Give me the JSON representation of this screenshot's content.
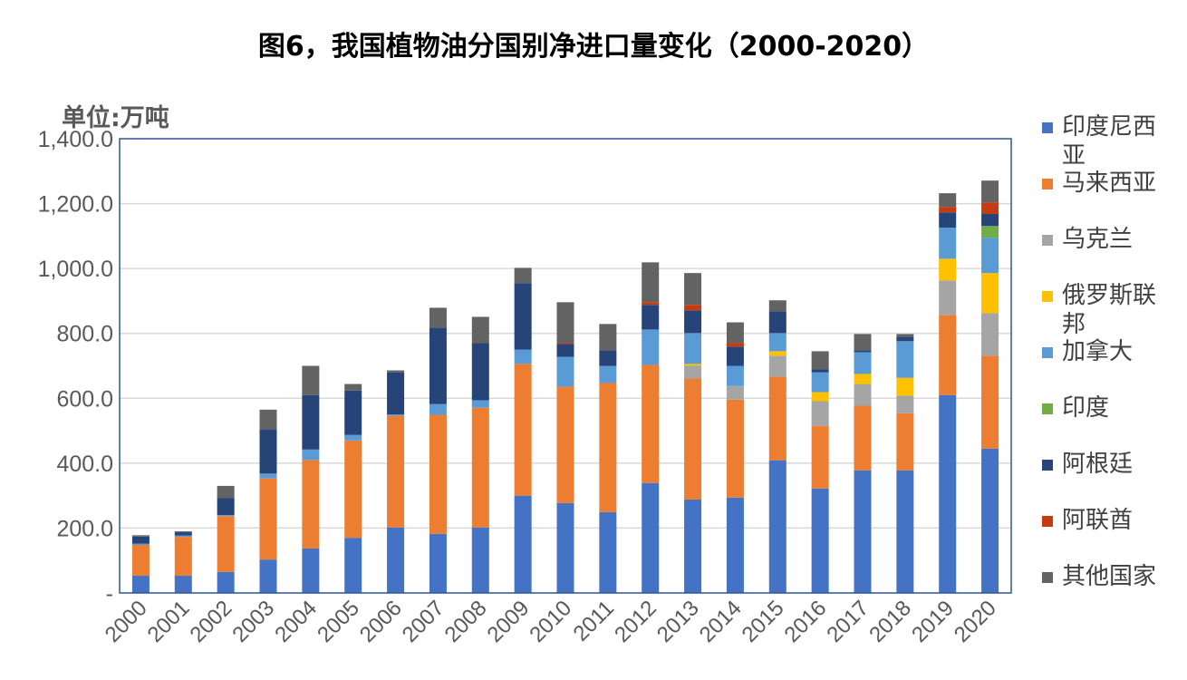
{
  "chart_data": {
    "type": "bar",
    "stacked": true,
    "title": "图6，我国植物油分国别净进口量变化（2000-2020）",
    "ylabel": "单位:万吨",
    "xlabel": "",
    "ylim": [
      0,
      1400
    ],
    "yticks": [
      0,
      200,
      400,
      600,
      800,
      1000,
      1200,
      1400
    ],
    "ytick_labels": [
      "-",
      "200.0",
      "400.0",
      "600.0",
      "800.0",
      "1,000.0",
      "1,200.0",
      "1,400.0"
    ],
    "grid": true,
    "legend_position": "right",
    "categories": [
      "2000",
      "2001",
      "2002",
      "2003",
      "2004",
      "2005",
      "2006",
      "2007",
      "2008",
      "2009",
      "2010",
      "2011",
      "2012",
      "2013",
      "2014",
      "2015",
      "2016",
      "2017",
      "2018",
      "2019",
      "2020"
    ],
    "series": [
      {
        "name": "印度尼西亚",
        "color": "#4472C4",
        "values": [
          53,
          53,
          65,
          103,
          137,
          170,
          202,
          182,
          202,
          300,
          277,
          249,
          339,
          288,
          294,
          409,
          322,
          378,
          378,
          610,
          445
        ]
      },
      {
        "name": "马来西亚",
        "color": "#ED7D31",
        "values": [
          95,
          120,
          172,
          250,
          273,
          300,
          344,
          367,
          369,
          406,
          359,
          398,
          364,
          373,
          302,
          258,
          193,
          199,
          176,
          247,
          286
        ]
      },
      {
        "name": "乌克兰",
        "color": "#A5A5A5",
        "values": [
          0,
          0,
          0,
          0,
          0,
          0,
          0,
          0,
          0,
          0,
          0,
          0,
          0,
          39,
          42,
          64,
          76,
          67,
          54,
          106,
          131
        ]
      },
      {
        "name": "俄罗斯联邦",
        "color": "#FFC000",
        "values": [
          0,
          0,
          0,
          0,
          0,
          0,
          0,
          0,
          0,
          0,
          0,
          0,
          0,
          6,
          0,
          14,
          28,
          31,
          55,
          67,
          124
        ]
      },
      {
        "name": "加拿大",
        "color": "#5B9BD5",
        "values": [
          4,
          4,
          3,
          15,
          32,
          17,
          4,
          33,
          23,
          44,
          92,
          53,
          109,
          95,
          62,
          56,
          61,
          67,
          113,
          96,
          109
        ]
      },
      {
        "name": "印度",
        "color": "#70AD47",
        "values": [
          0,
          0,
          0,
          0,
          0,
          0,
          0,
          0,
          0,
          0,
          0,
          0,
          0,
          0,
          0,
          0,
          0,
          0,
          0,
          0,
          36
        ]
      },
      {
        "name": "阿根廷",
        "color": "#264478",
        "values": [
          22,
          10,
          53,
          137,
          168,
          137,
          130,
          236,
          176,
          205,
          39,
          48,
          76,
          70,
          59,
          67,
          9,
          6,
          14,
          47,
          37
        ]
      },
      {
        "name": "阿联酋",
        "color": "#C63B10",
        "values": [
          0,
          0,
          0,
          0,
          0,
          0,
          0,
          0,
          0,
          0,
          3,
          0,
          8,
          17,
          11,
          0,
          0,
          0,
          0,
          17,
          36
        ]
      },
      {
        "name": "其他国家",
        "color": "#636363",
        "values": [
          4,
          3,
          37,
          60,
          90,
          20,
          6,
          61,
          81,
          47,
          126,
          81,
          123,
          98,
          64,
          34,
          56,
          50,
          8,
          42,
          67
        ]
      }
    ],
    "colors": {
      "plot_border": "#2F5597",
      "grid": "#D9D9D9",
      "axis_text": "#595959"
    }
  }
}
